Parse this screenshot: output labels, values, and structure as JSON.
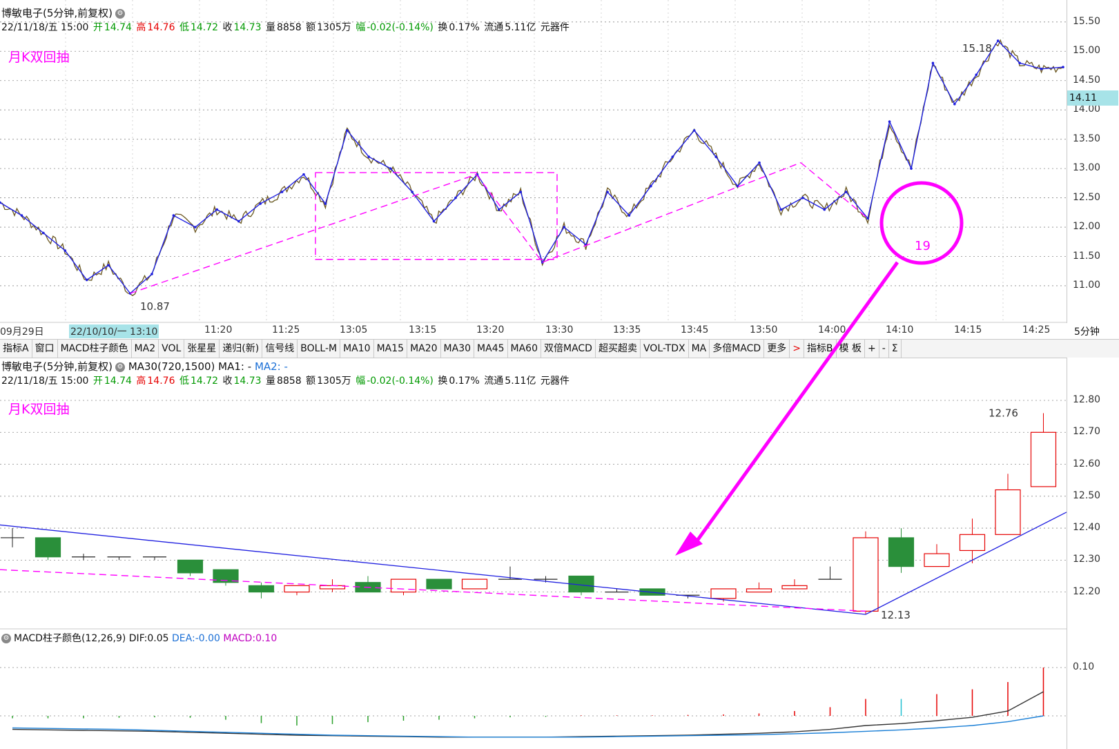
{
  "main_pane": {
    "title": "博敏电子(5分钟,前复权)",
    "info": {
      "date": "22/11/18/五 15:00",
      "open_label": "开",
      "open": "14.74",
      "high_label": "高",
      "high": "14.76",
      "low_label": "低",
      "low": "14.72",
      "close_label": "收",
      "close": "14.73",
      "vol_label": "量",
      "vol": "8858",
      "amt_label": "额",
      "amt": "1305万",
      "chg_label": "幅",
      "chg": "-0.02(-0.14%)",
      "turn_label": "换",
      "turn": "0.17%",
      "float_label": "流通",
      "float": "5.11亿",
      "industry": "元器件"
    },
    "strategy": "月K双回抽",
    "current_price": "14.11",
    "period": "5分钟",
    "axis_ticks": [
      "15.50",
      "15.00",
      "14.50",
      "14.00",
      "13.50",
      "13.00",
      "12.50",
      "12.00",
      "11.50",
      "11.00"
    ],
    "time_labels": [
      "09月29日",
      "11:20",
      "11:25",
      "13:05",
      "13:15",
      "13:20",
      "13:30",
      "13:35",
      "13:45",
      "13:50",
      "14:00",
      "14:10",
      "14:15",
      "14:25"
    ],
    "time_highlight": "22/10/10/一 13:10",
    "annotations": {
      "low": "10.87",
      "high": "15.18",
      "circle_label": "19"
    }
  },
  "toolbar": {
    "items": [
      "指标A",
      "窗口",
      "MACD柱子颜色",
      "MA2",
      "VOL",
      "张星星",
      "递归(新)",
      "信号线",
      "BOLL-M",
      "MA10",
      "MA15",
      "MA20",
      "MA30",
      "MA45",
      "MA60",
      "双倍MACD",
      "超买超卖",
      "VOL-TDX",
      "MA",
      "多倍MACD",
      "更多"
    ],
    "arrow": ">",
    "right_items": [
      "指标B",
      "模 板",
      "+",
      "-",
      "Σ"
    ]
  },
  "sub_pane": {
    "title": "博敏电子(5分钟,前复权)",
    "ma_label": "MA30(720,1500)",
    "ma1": "MA1: -",
    "ma2": "MA2: -",
    "strategy": "月K双回抽",
    "axis_ticks": [
      "12.80",
      "12.70",
      "12.60",
      "12.50",
      "12.40",
      "12.30",
      "12.20"
    ],
    "annotations": {
      "low": "12.13",
      "high": "12.76"
    }
  },
  "macd_pane": {
    "label": "MACD柱子颜色(12,26,9)",
    "dif_label": "DIF:",
    "dif": "0.05",
    "dea_label": "DEA:",
    "dea": "-0.00",
    "macd_label": "MACD:",
    "macd": "0.10",
    "axis_tick": "0.10"
  },
  "colors": {
    "up": "#e60000",
    "down": "#2a8f3a",
    "zigzag": "#1f1fe0",
    "dashed": "#ff00ff",
    "dif": "#333333",
    "dea": "#1a7fd6"
  },
  "chart_data": [
    {
      "type": "line",
      "title": "博敏电子(5分钟,前复权)",
      "series": [
        {
          "values": [
            12.42,
            12.2,
            11.9,
            11.6,
            11.1,
            11.35,
            10.87,
            11.2,
            12.2,
            12.0,
            12.3,
            12.1,
            12.4,
            12.6,
            12.9,
            12.4,
            13.65,
            13.2,
            13.0,
            12.6,
            12.1,
            12.5,
            12.9,
            12.3,
            12.6,
            11.4,
            12.0,
            11.7,
            12.6,
            12.2,
            12.7,
            13.2,
            13.65,
            13.2,
            12.7,
            13.1,
            12.3,
            12.5,
            12.3,
            12.6,
            12.15,
            13.8,
            13.0,
            14.8,
            14.1,
            14.6,
            15.18,
            14.8,
            14.7,
            14.73
          ]
        }
      ],
      "ylim": [
        10.75,
        15.55
      ],
      "annotations": [
        "10.87",
        "15.18"
      ]
    },
    {
      "type": "bar",
      "title": "MA30(720,1500)",
      "candles": [
        {
          "o": 12.37,
          "c": 12.37,
          "h": 12.4,
          "l": 12.34
        },
        {
          "o": 12.37,
          "c": 12.31,
          "h": 12.37,
          "l": 12.3
        },
        {
          "o": 12.31,
          "c": 12.31,
          "h": 12.32,
          "l": 12.3
        },
        {
          "o": 12.31,
          "c": 12.31,
          "h": 12.31,
          "l": 12.3
        },
        {
          "o": 12.31,
          "c": 12.31,
          "h": 12.31,
          "l": 12.3
        },
        {
          "o": 12.3,
          "c": 12.26,
          "h": 12.3,
          "l": 12.25
        },
        {
          "o": 12.27,
          "c": 12.23,
          "h": 12.27,
          "l": 12.22
        },
        {
          "o": 12.22,
          "c": 12.2,
          "h": 12.23,
          "l": 12.18
        },
        {
          "o": 12.2,
          "c": 12.22,
          "h": 12.22,
          "l": 12.19
        },
        {
          "o": 12.21,
          "c": 12.22,
          "h": 12.24,
          "l": 12.2
        },
        {
          "o": 12.23,
          "c": 12.2,
          "h": 12.25,
          "l": 12.2
        },
        {
          "o": 12.2,
          "c": 12.24,
          "h": 12.24,
          "l": 12.19
        },
        {
          "o": 12.24,
          "c": 12.21,
          "h": 12.24,
          "l": 12.21
        },
        {
          "o": 12.21,
          "c": 12.24,
          "h": 12.24,
          "l": 12.21
        },
        {
          "o": 12.24,
          "c": 12.24,
          "h": 12.28,
          "l": 12.24
        },
        {
          "o": 12.24,
          "c": 12.24,
          "h": 12.25,
          "l": 12.23
        },
        {
          "o": 12.25,
          "c": 12.2,
          "h": 12.25,
          "l": 12.19
        },
        {
          "o": 12.2,
          "c": 12.2,
          "h": 12.21,
          "l": 12.2
        },
        {
          "o": 12.21,
          "c": 12.19,
          "h": 12.21,
          "l": 12.19
        },
        {
          "o": 12.19,
          "c": 12.19,
          "h": 12.19,
          "l": 12.18
        },
        {
          "o": 12.18,
          "c": 12.21,
          "h": 12.21,
          "l": 12.17
        },
        {
          "o": 12.2,
          "c": 12.21,
          "h": 12.23,
          "l": 12.2
        },
        {
          "o": 12.21,
          "c": 12.22,
          "h": 12.24,
          "l": 12.21
        },
        {
          "o": 12.24,
          "c": 12.24,
          "h": 12.28,
          "l": 12.24
        },
        {
          "o": 12.14,
          "c": 12.37,
          "h": 12.39,
          "l": 12.13
        },
        {
          "o": 12.37,
          "c": 12.28,
          "h": 12.4,
          "l": 12.26
        },
        {
          "o": 12.28,
          "c": 12.32,
          "h": 12.35,
          "l": 12.28
        },
        {
          "o": 12.33,
          "c": 12.38,
          "h": 12.43,
          "l": 12.29
        },
        {
          "o": 12.38,
          "c": 12.52,
          "h": 12.57,
          "l": 12.38
        },
        {
          "o": 12.53,
          "c": 12.7,
          "h": 12.76,
          "l": 12.53
        }
      ],
      "ylim": [
        12.12,
        12.82
      ],
      "annotations": [
        "12.13",
        "12.76"
      ]
    },
    {
      "type": "bar",
      "title": "MACD柱子颜色(12,26,9)",
      "series": [
        {
          "name": "MACD",
          "values": [
            -0.005,
            -0.005,
            -0.005,
            -0.004,
            -0.003,
            -0.004,
            -0.008,
            -0.015,
            -0.02,
            -0.017,
            -0.013,
            -0.01,
            -0.008,
            -0.005,
            -0.003,
            -0.002,
            0.001,
            0.001,
            0.001,
            0.002,
            0.003,
            0.005,
            0.01,
            0.018,
            0.035,
            0.035,
            0.045,
            0.055,
            0.07,
            0.1
          ]
        },
        {
          "name": "DIF",
          "values": [
            -0.028,
            -0.029,
            -0.03,
            -0.031,
            -0.032,
            -0.034,
            -0.036,
            -0.038,
            -0.04,
            -0.041,
            -0.042,
            -0.043,
            -0.044,
            -0.044,
            -0.044,
            -0.044,
            -0.043,
            -0.042,
            -0.041,
            -0.04,
            -0.038,
            -0.036,
            -0.033,
            -0.028,
            -0.02,
            -0.016,
            -0.01,
            -0.003,
            0.01,
            0.05
          ]
        },
        {
          "name": "DEA",
          "values": [
            -0.025,
            -0.026,
            -0.027,
            -0.028,
            -0.03,
            -0.032,
            -0.034,
            -0.036,
            -0.038,
            -0.04,
            -0.041,
            -0.042,
            -0.043,
            -0.044,
            -0.044,
            -0.044,
            -0.044,
            -0.043,
            -0.042,
            -0.041,
            -0.04,
            -0.039,
            -0.037,
            -0.035,
            -0.032,
            -0.029,
            -0.025,
            -0.02,
            -0.012,
            0.0
          ]
        }
      ],
      "ylim": [
        -0.05,
        0.12
      ]
    }
  ]
}
